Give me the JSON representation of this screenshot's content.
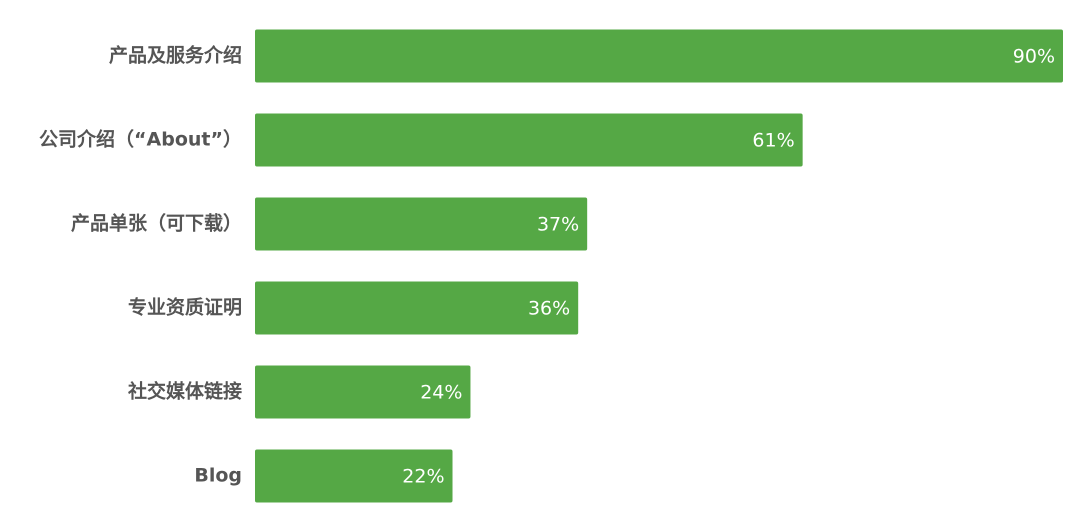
{
  "chart_data": {
    "type": "hbar",
    "categories": [
      "产品及服务介绍",
      "公司介绍（“About”）",
      "产品单张（可下载）",
      "专业资质证明",
      "社交媒体链接",
      "Blog"
    ],
    "values": [
      90,
      61,
      37,
      36,
      24,
      22
    ],
    "value_labels": [
      "90%",
      "61%",
      "37%",
      "36%",
      "24%",
      "22%"
    ],
    "color": "#55a845"
  }
}
